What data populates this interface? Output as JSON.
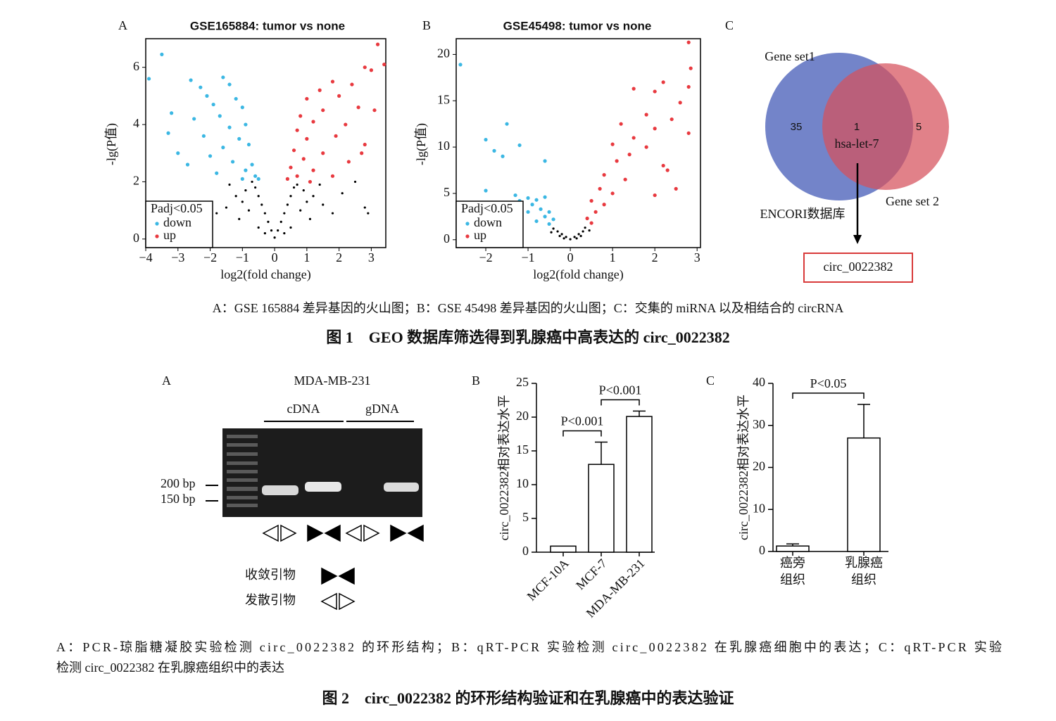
{
  "figure1": {
    "panel_labels": [
      "A",
      "B",
      "C"
    ],
    "venn": {
      "sets": [
        "Gene set1",
        "Gene set 2"
      ],
      "counts": [
        35,
        1,
        5
      ],
      "shared_label": "hsa-let-7",
      "database": "ENCORI数据库",
      "result": "circ_0022382"
    },
    "caption": "A：GSE 165884 差异基因的火山图；B：GSE 45498 差异基因的火山图；C：交集的 miRNA 以及相结合的 circRNA",
    "title": "图 1　GEO 数据库筛选得到乳腺癌中高表达的 circ_0022382"
  },
  "figure2": {
    "panel_labels": [
      "A",
      "B",
      "C"
    ],
    "gel": {
      "cell_line": "MDA-MB-231",
      "lanes": [
        "cDNA",
        "gDNA"
      ],
      "markers": [
        "200 bp",
        "150 bp"
      ],
      "primers": [
        "收敛引物",
        "发散引物"
      ]
    },
    "caption": [
      "A：PCR-琼脂糖凝胶实验检测 circ_0022382 的环形结构；B：qRT-PCR 实验检测 circ_0022382 在乳腺癌细胞中的表达；C：qRT-PCR 实验",
      "检测 circ_0022382 在乳腺癌组织中的表达"
    ],
    "title": "图 2　circ_0022382 的环形结构验证和在乳腺癌中的表达验证"
  },
  "chart_data": [
    {
      "type": "scatter",
      "title": "GSE165884: tumor vs none",
      "xlabel": "log2(fold change)",
      "ylabel": "-lg(P值)",
      "legend_title": "Padj<0.05",
      "legend": "lower left",
      "xlim": [
        -4.0,
        3.45
      ],
      "ylim": [
        -0.3,
        7.0
      ],
      "xticks": [
        {
          "value": -4,
          "label": "−4"
        },
        {
          "value": -3,
          "label": "−3"
        },
        {
          "value": -2,
          "label": "−2"
        },
        {
          "value": -1,
          "label": "−1"
        },
        0,
        1,
        2,
        3
      ],
      "yticks": [
        0,
        2,
        4,
        6
      ],
      "series": [
        {
          "name": "down",
          "color": "#3bb7e3",
          "x": [
            -3.5,
            -3.9,
            -2.6,
            -2.3,
            -1.6,
            -2.1,
            -1.4,
            -1.9,
            -1.2,
            -3.2,
            -2.5,
            -1.7,
            -1.0,
            -1.4,
            -0.9,
            -2.2,
            -1.1,
            -0.8,
            -1.6,
            -3.0,
            -2.0,
            -0.7,
            -1.3,
            -0.9,
            -0.6,
            -2.7,
            -1.8,
            -3.3,
            -1.0,
            -0.5
          ],
          "values": [
            6.45,
            5.6,
            5.55,
            5.3,
            5.65,
            5.0,
            5.4,
            4.7,
            4.9,
            4.4,
            4.2,
            4.3,
            4.6,
            3.9,
            4.0,
            3.6,
            3.5,
            3.3,
            3.2,
            3.0,
            2.9,
            2.6,
            2.7,
            2.4,
            2.2,
            2.6,
            2.3,
            3.7,
            2.1,
            2.1
          ]
        },
        {
          "name": "up",
          "color": "#e8393f",
          "x": [
            3.2,
            3.4,
            2.8,
            3.0,
            2.4,
            1.8,
            1.4,
            2.0,
            1.0,
            2.6,
            1.5,
            0.8,
            1.2,
            2.2,
            0.7,
            1.9,
            1.0,
            2.8,
            0.6,
            1.5,
            0.9,
            2.3,
            0.5,
            1.2,
            0.4,
            1.8,
            2.7,
            3.1,
            0.7,
            1.1
          ],
          "values": [
            6.8,
            6.1,
            6.0,
            5.9,
            5.4,
            5.5,
            5.2,
            5.0,
            4.9,
            4.6,
            4.5,
            4.3,
            4.1,
            4.0,
            3.8,
            3.6,
            3.5,
            3.3,
            3.1,
            3.0,
            2.8,
            2.7,
            2.5,
            2.4,
            2.1,
            2.2,
            3.0,
            4.5,
            2.2,
            2.0
          ]
        },
        {
          "color": "#000000",
          "x": [
            0,
            -0.1,
            0.1,
            -0.2,
            0.2,
            -0.3,
            0.3,
            -0.4,
            0.4,
            -0.5,
            0.5,
            -0.6,
            0.6,
            -0.7,
            0.7,
            -0.9,
            0.9,
            -1.2,
            1.2,
            -1.5,
            1.5,
            -1.8,
            1.8,
            -0.8,
            0.8,
            -1.1,
            1.1,
            -0.5,
            0.5,
            -2.0,
            2.1,
            -1.4,
            1.4,
            2.8,
            2.9,
            -0.3,
            0.3,
            -1.0,
            1.0,
            2.5
          ],
          "values": [
            0.05,
            0.3,
            0.3,
            0.6,
            0.6,
            0.9,
            0.9,
            1.2,
            1.2,
            1.5,
            1.5,
            1.8,
            1.8,
            2.0,
            1.9,
            1.7,
            1.7,
            1.5,
            1.5,
            1.1,
            1.2,
            0.9,
            0.9,
            1.0,
            1.0,
            0.7,
            0.7,
            0.4,
            0.4,
            0.5,
            1.6,
            1.9,
            1.9,
            1.1,
            0.9,
            0.2,
            0.2,
            1.3,
            1.3,
            2.0
          ]
        }
      ]
    },
    {
      "type": "scatter",
      "title": "GSE45498: tumor vs none",
      "xlabel": "log2(fold change)",
      "ylabel": "-lg(P值)",
      "legend_title": "Padj<0.05",
      "legend": "lower left",
      "xlim": [
        -2.7,
        3.08
      ],
      "ylim": [
        -0.85,
        21.7
      ],
      "xticks": [
        {
          "value": -2,
          "label": "−2"
        },
        {
          "value": -1,
          "label": "−1"
        },
        0,
        1,
        2,
        3
      ],
      "yticks": [
        0,
        5,
        10,
        15,
        20
      ],
      "series": [
        {
          "name": "down",
          "color": "#3bb7e3",
          "x": [
            -2.6,
            -1.5,
            -2.0,
            -1.2,
            -1.8,
            -1.6,
            -0.6,
            -2.0,
            -1.3,
            -1.2,
            -1.0,
            -0.8,
            -0.6,
            -0.9,
            -0.7,
            -0.5,
            -1.0,
            -0.6,
            -0.4,
            -0.5,
            -1.2,
            -0.8
          ],
          "values": [
            18.9,
            12.5,
            10.8,
            10.2,
            9.6,
            9.0,
            8.5,
            5.3,
            4.8,
            4.2,
            4.5,
            4.3,
            4.6,
            3.8,
            3.3,
            3.0,
            3.0,
            2.5,
            2.2,
            1.7,
            1.4,
            2.0
          ]
        },
        {
          "name": "up",
          "color": "#e8393f",
          "x": [
            2.8,
            2.85,
            2.8,
            1.5,
            2.0,
            2.2,
            2.6,
            1.8,
            2.4,
            1.2,
            2.0,
            1.5,
            2.8,
            1.0,
            1.8,
            1.4,
            2.2,
            1.1,
            0.8,
            1.3,
            0.7,
            1.0,
            0.5,
            0.8,
            0.6,
            0.4,
            0.5,
            2.3,
            2.5,
            2.0
          ],
          "values": [
            21.3,
            18.5,
            16.5,
            16.3,
            16.0,
            17.0,
            14.8,
            13.5,
            13.0,
            12.5,
            12.0,
            11.0,
            11.5,
            10.3,
            10.0,
            9.2,
            8.0,
            8.5,
            7.0,
            6.5,
            5.5,
            5.0,
            4.2,
            3.8,
            3.0,
            2.3,
            1.8,
            7.5,
            5.5,
            4.8
          ]
        },
        {
          "color": "#000000",
          "x": [
            0,
            -0.1,
            0.1,
            -0.2,
            0.2,
            -0.3,
            0.3,
            -0.4,
            0.35,
            -0.25,
            0.25,
            -0.45,
            0.45,
            -0.15,
            0.15
          ],
          "values": [
            0.05,
            0.3,
            0.3,
            0.6,
            0.6,
            0.9,
            0.9,
            1.2,
            1.3,
            0.4,
            0.4,
            0.8,
            1.0,
            0.15,
            0.15
          ]
        }
      ]
    },
    {
      "type": "bar",
      "ylabel": "circ_0022382相对表达水平",
      "xtick_rotation": -45,
      "categories": [
        "MCF-10A",
        "MCF-7",
        "MDA-MB-231"
      ],
      "values": [
        0.9,
        13.0,
        20.1
      ],
      "errors": [
        0,
        3.3,
        0.8
      ],
      "ylim": [
        0,
        25
      ],
      "yticks": [
        0,
        5,
        10,
        15,
        20,
        25
      ],
      "annotations": [
        {
          "text": "P<0.001",
          "pair": [
            "MCF-10A",
            "MCF-7"
          ]
        },
        {
          "text": "P<0.001",
          "pair": [
            "MCF-7",
            "MDA-MB-231"
          ]
        }
      ]
    },
    {
      "type": "bar",
      "ylabel": "circ_0022382相对表达水平",
      "categories": [
        [
          "癌旁",
          "组织"
        ],
        [
          "乳腺癌",
          "组织"
        ]
      ],
      "values": [
        1.3,
        27.0
      ],
      "errors": [
        0.5,
        8.0
      ],
      "ylim": [
        0,
        40
      ],
      "yticks": [
        0,
        10,
        20,
        30,
        40
      ],
      "annotations": [
        {
          "text": "P<0.05",
          "pair": [
            0,
            1
          ]
        }
      ]
    }
  ]
}
